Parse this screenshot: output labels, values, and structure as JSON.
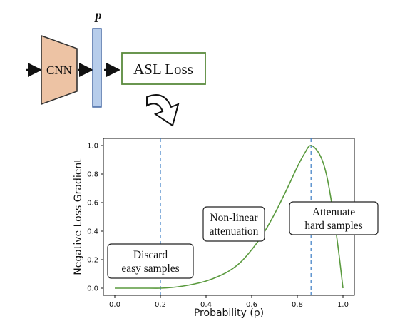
{
  "pipeline": {
    "block_label": "CNN",
    "prob_symbol": "p",
    "loss_label": "ASL Loss"
  },
  "colors": {
    "cnn_fill": "#EDC3A4",
    "prob_fill": "#B7CDEB",
    "prob_stroke": "#3A5F9E",
    "loss_border": "#5A8A3C",
    "curve": "#5A9A3E",
    "vline": "#3B7DC4"
  },
  "chart_data": {
    "type": "line",
    "title": "",
    "xlabel": "Probability (p)",
    "ylabel": "Negative Loss Gradient",
    "xlim": [
      -0.05,
      1.05
    ],
    "ylim": [
      -0.05,
      1.05
    ],
    "x_ticks": [
      "0.0",
      "0.2",
      "0.4",
      "0.6",
      "0.8",
      "1.0"
    ],
    "y_ticks": [
      "0.0",
      "0.2",
      "0.4",
      "0.6",
      "0.8",
      "1.0"
    ],
    "grid": false,
    "series": [
      {
        "x": [
          0.0,
          0.15,
          0.2,
          0.25,
          0.3,
          0.35,
          0.4,
          0.45,
          0.5,
          0.55,
          0.6,
          0.65,
          0.7,
          0.75,
          0.8,
          0.83,
          0.86,
          0.9,
          0.93,
          0.96,
          0.98,
          1.0
        ],
        "y": [
          0.0,
          0.0,
          0.0,
          0.005,
          0.015,
          0.03,
          0.05,
          0.08,
          0.12,
          0.18,
          0.27,
          0.38,
          0.52,
          0.68,
          0.85,
          0.94,
          1.0,
          0.93,
          0.78,
          0.5,
          0.27,
          0.0
        ]
      }
    ],
    "vlines": [
      0.2,
      0.86
    ],
    "annotations": [
      {
        "lines": [
          "Discard",
          "easy samples"
        ]
      },
      {
        "lines": [
          "Non-linear",
          "attenuation"
        ]
      },
      {
        "lines": [
          "Attenuate",
          "hard samples"
        ]
      }
    ]
  }
}
